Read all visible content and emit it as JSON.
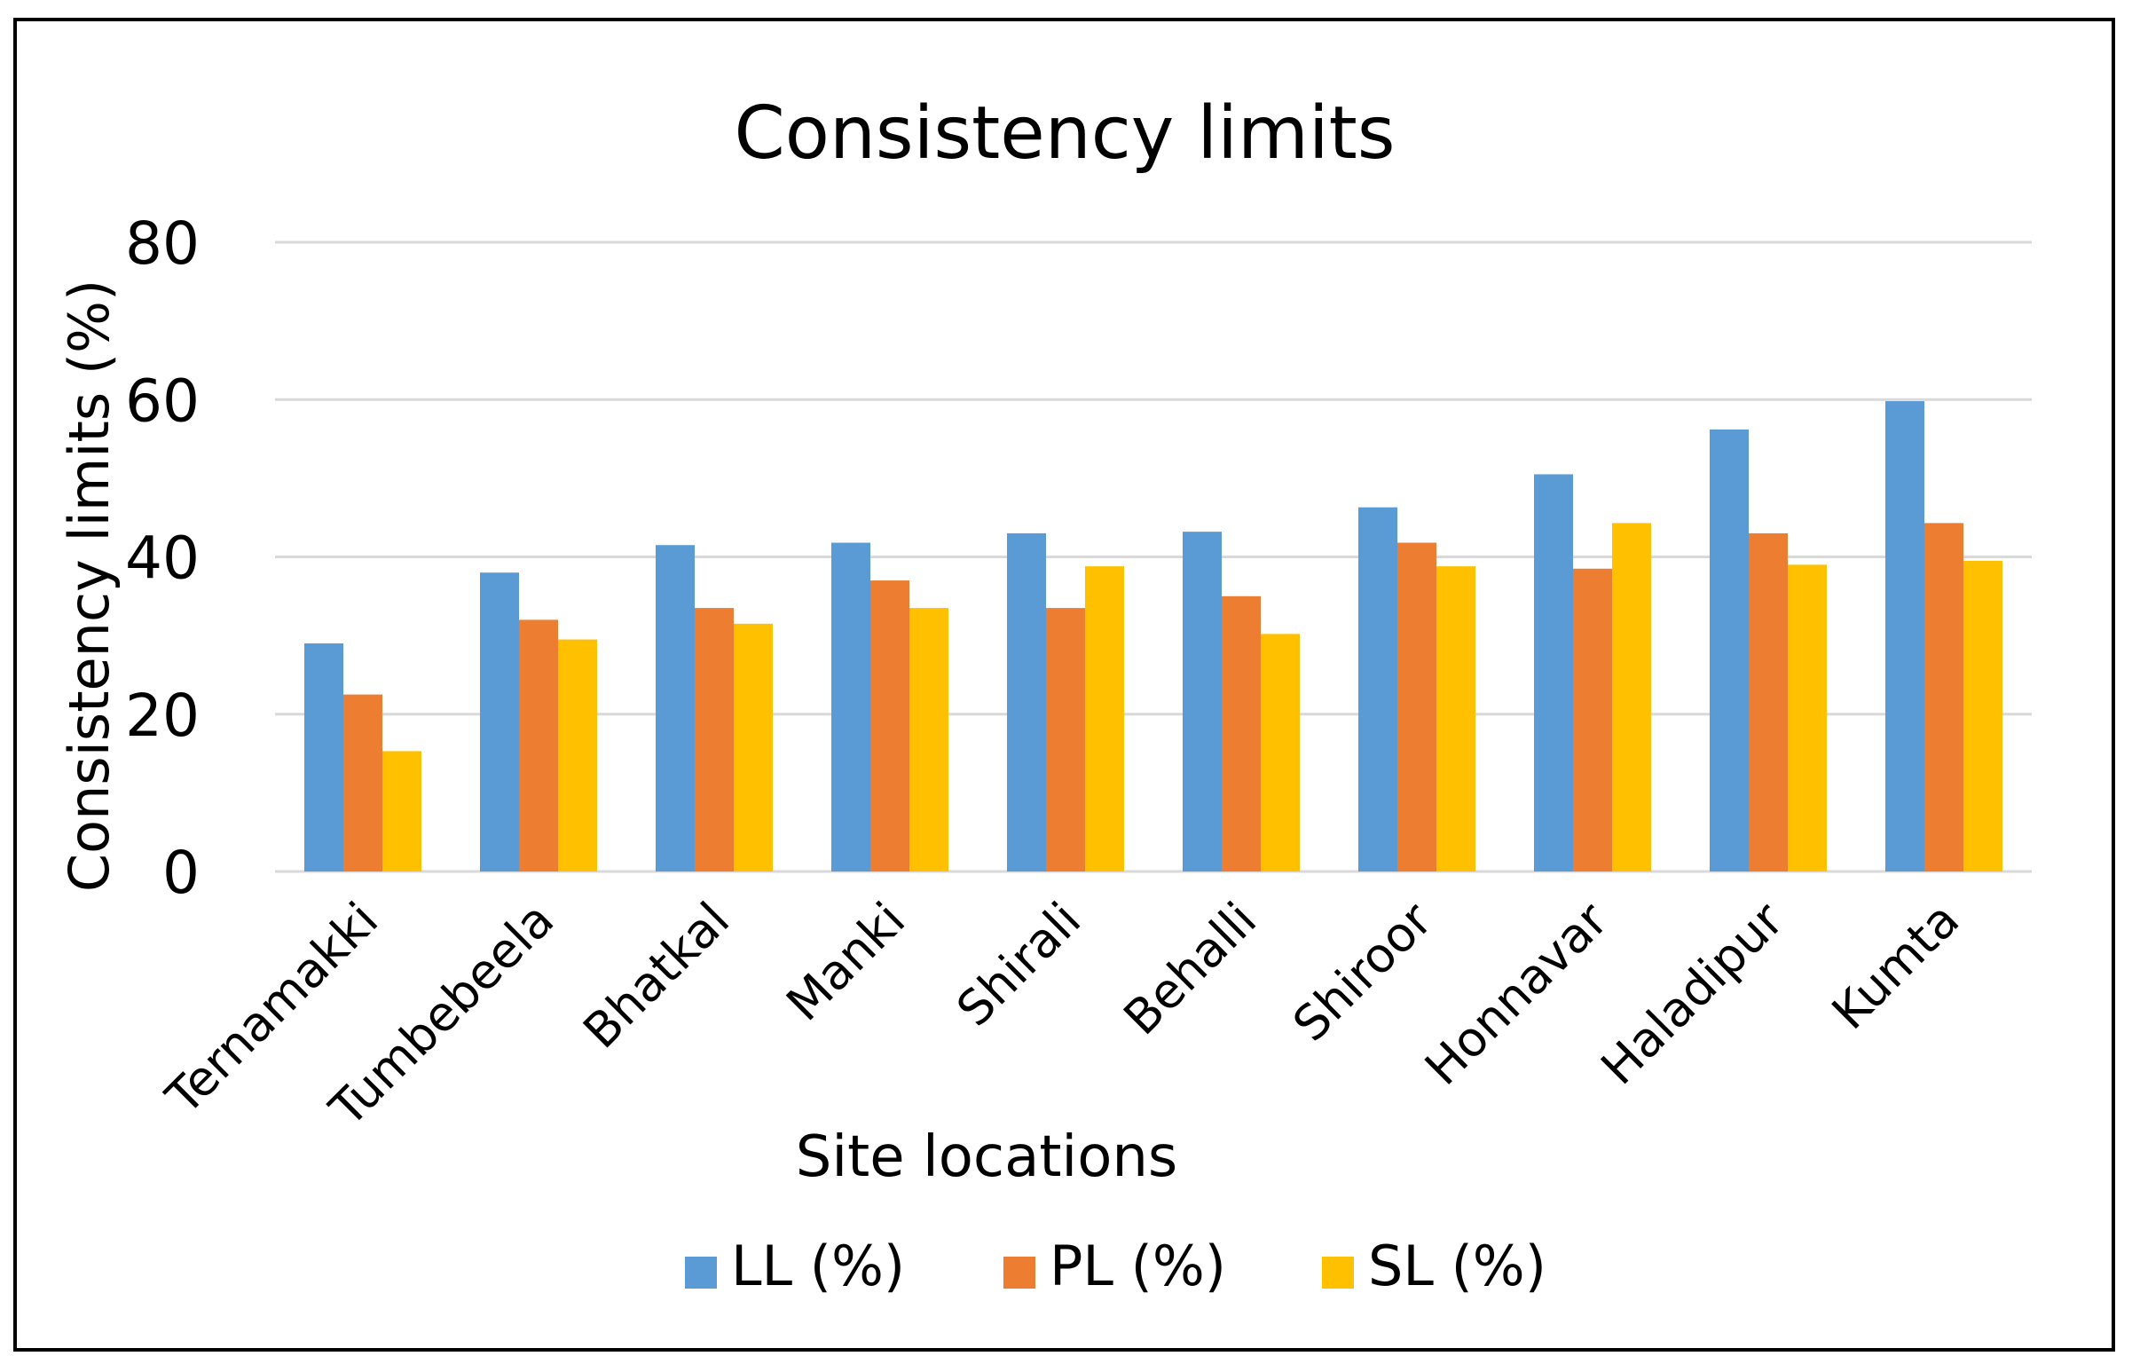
{
  "chart_data": {
    "type": "bar",
    "title": "Consistency limits",
    "xlabel": "Site locations",
    "ylabel": "Consistency limits (%)",
    "ylim": [
      0,
      80
    ],
    "yticks": [
      0,
      20,
      40,
      60,
      80
    ],
    "grid": true,
    "legend_position": "bottom",
    "categories": [
      "Ternamakki",
      "Tumbebeela",
      "Bhatkal",
      "Manki",
      "Shirali",
      "Behalli",
      "Shiroor",
      "Honnavar",
      "Haladipur",
      "Kumta"
    ],
    "series": [
      {
        "name": "LL (%)",
        "color": "#5B9BD5",
        "values": [
          29,
          38,
          41.5,
          41.8,
          43,
          43.2,
          46.3,
          50.5,
          56.2,
          59.8
        ]
      },
      {
        "name": "PL (%)",
        "color": "#ED7D31",
        "values": [
          22.5,
          32,
          33.5,
          37,
          33.5,
          35,
          41.8,
          38.5,
          43,
          44.3
        ]
      },
      {
        "name": "SL (%)",
        "color": "#FFC000",
        "values": [
          15.3,
          29.5,
          31.5,
          33.5,
          38.8,
          30.2,
          38.8,
          44.3,
          39,
          39.5
        ]
      }
    ]
  }
}
